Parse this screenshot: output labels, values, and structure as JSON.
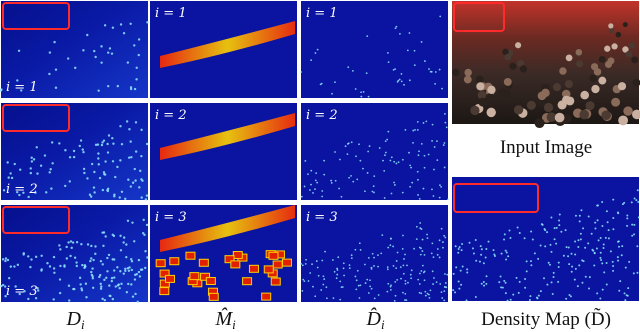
{
  "columns": [
    {
      "label": {
        "main": "D",
        "sub": "i"
      },
      "panels": [
        "i = 1",
        "i = 2",
        "i = 3"
      ]
    },
    {
      "label": {
        "main": "M̂",
        "sub": "i"
      },
      "panels": [
        "i = 1",
        "i = 2",
        "i = 3"
      ]
    },
    {
      "label": {
        "main": "D̂",
        "sub": "i"
      },
      "panels": [
        "i = 1",
        "i = 2",
        "i = 3"
      ]
    }
  ],
  "input_image": {
    "caption": "Input Image"
  },
  "density_map": {
    "label": "Density Map (D̃)"
  }
}
